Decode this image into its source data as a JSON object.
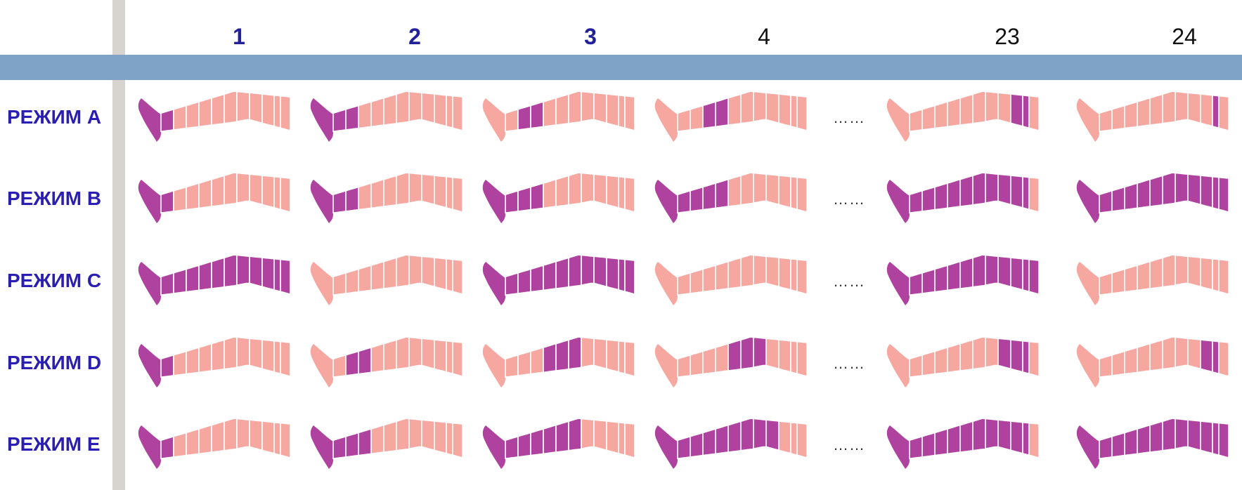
{
  "columns": [
    {
      "label": "1",
      "bold": true
    },
    {
      "label": "2",
      "bold": true
    },
    {
      "label": "3",
      "bold": true
    },
    {
      "label": "4",
      "bold": false
    },
    {
      "label": "23",
      "bold": false
    },
    {
      "label": "24",
      "bold": false
    }
  ],
  "ellipsis": "……",
  "colors": {
    "inactive": "#f6a7a0",
    "active": "#b0429f",
    "divider": "#ffffff",
    "axis_bar": "#7fa3c7",
    "side_bar": "#d7d3cf",
    "row_label": "#2a1fb2"
  },
  "segment_count": 11,
  "modes": [
    {
      "label": "РЕЖИМ A",
      "active": [
        [
          0
        ],
        [
          0,
          1
        ],
        [
          1,
          2
        ],
        [
          2,
          3
        ],
        [
          8,
          9
        ],
        [
          9
        ]
      ]
    },
    {
      "label": "РЕЖИМ B",
      "active": [
        [
          0
        ],
        [
          0,
          1
        ],
        [
          0,
          1,
          2
        ],
        [
          0,
          1,
          2,
          3
        ],
        [
          0,
          1,
          2,
          3,
          4,
          5,
          6,
          7,
          8,
          9
        ],
        [
          0,
          1,
          2,
          3,
          4,
          5,
          6,
          7,
          8,
          9,
          10
        ]
      ]
    },
    {
      "label": "РЕЖИМ C",
      "active": [
        [
          0,
          1,
          2,
          3,
          4,
          5,
          6,
          7,
          8,
          9,
          10
        ],
        [],
        [
          0,
          1,
          2,
          3,
          4,
          5,
          6,
          7,
          8,
          9,
          10
        ],
        [],
        [
          0,
          1,
          2,
          3,
          4,
          5,
          6,
          7,
          8,
          9,
          10
        ],
        []
      ]
    },
    {
      "label": "РЕЖИМ D",
      "active": [
        [
          0
        ],
        [
          1,
          2
        ],
        [
          3,
          4,
          5
        ],
        [
          4,
          5,
          6
        ],
        [
          7,
          8,
          9
        ],
        [
          8,
          9
        ]
      ]
    },
    {
      "label": "РЕЖИМ E",
      "active": [
        [
          0
        ],
        [
          0,
          1,
          2
        ],
        [
          0,
          1,
          2,
          3,
          4,
          5
        ],
        [
          0,
          1,
          2,
          3,
          4,
          5,
          6,
          7
        ],
        [
          0,
          1,
          2,
          3,
          4,
          5,
          6,
          7,
          8,
          9
        ],
        [
          0,
          1,
          2,
          3,
          4,
          5,
          6,
          7,
          8,
          9,
          10
        ]
      ]
    }
  ]
}
